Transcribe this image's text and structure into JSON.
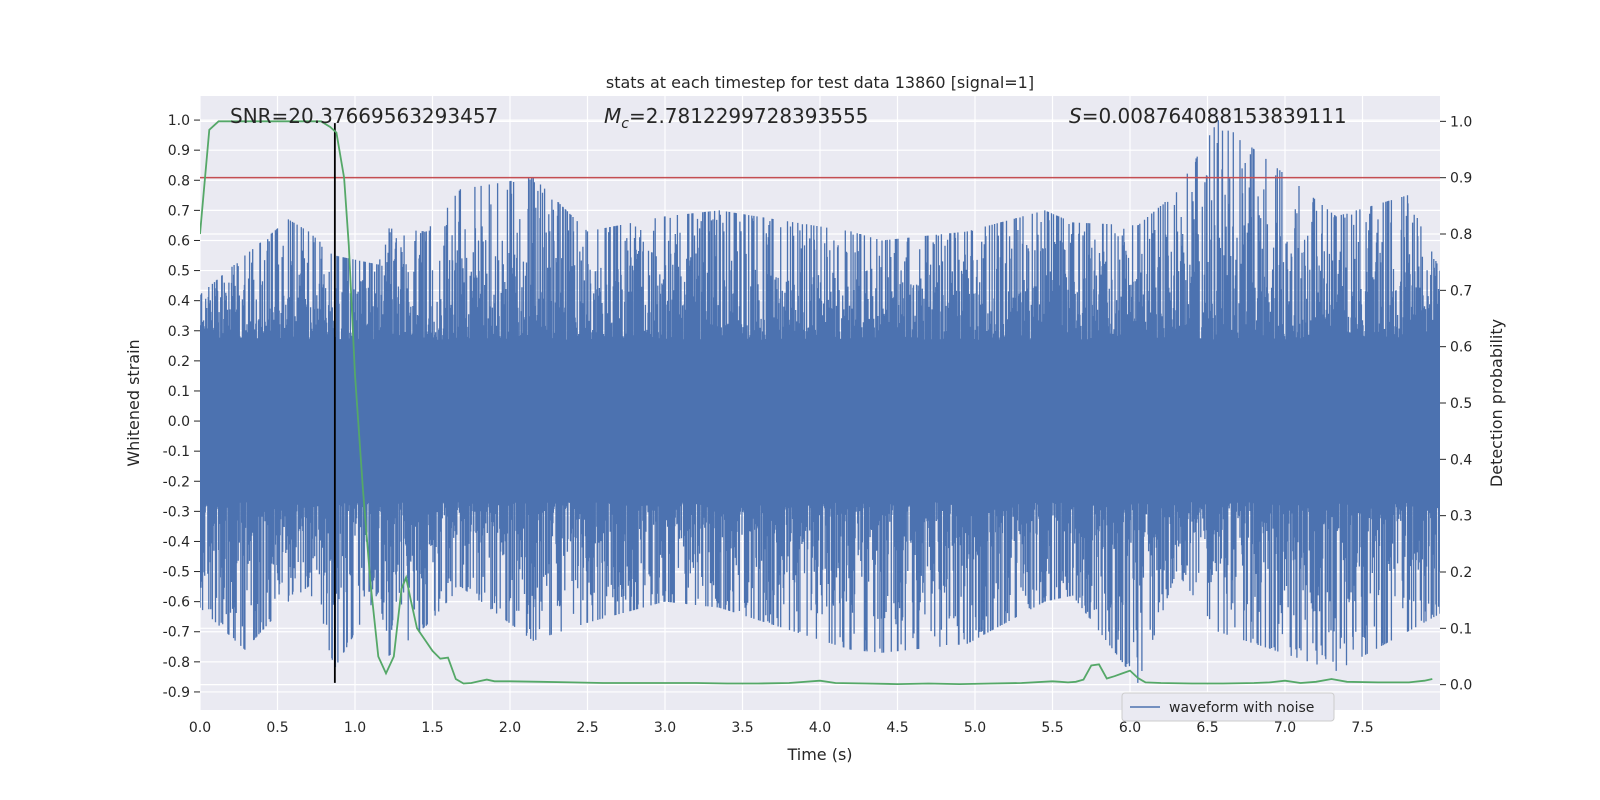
{
  "chart_data": {
    "type": "line",
    "title": "stats at each timestep for test data 13860 [signal=1]",
    "xlabel": "Time (s)",
    "ylabel": "Whitened strain",
    "y2label": "Detection probability",
    "xlim": [
      0.0,
      8.0
    ],
    "ylim": [
      -0.96,
      1.08
    ],
    "y2lim": [
      -0.045,
      1.045
    ],
    "x_ticks": [
      "0.0",
      "0.5",
      "1.0",
      "1.5",
      "2.0",
      "2.5",
      "3.0",
      "3.5",
      "4.0",
      "4.5",
      "5.0",
      "5.5",
      "6.0",
      "6.5",
      "7.0",
      "7.5"
    ],
    "x_tick_values": [
      0,
      0.5,
      1,
      1.5,
      2,
      2.5,
      3,
      3.5,
      4,
      4.5,
      5,
      5.5,
      6,
      6.5,
      7,
      7.5
    ],
    "y_ticks": [
      "1.0",
      "0.9",
      "0.8",
      "0.7",
      "0.6",
      "0.5",
      "0.4",
      "0.3",
      "0.2",
      "0.1",
      "0.0",
      "-0.1",
      "-0.2",
      "-0.3",
      "-0.4",
      "-0.5",
      "-0.6",
      "-0.7",
      "-0.8",
      "-0.9"
    ],
    "y_tick_values": [
      1.0,
      0.9,
      0.8,
      0.7,
      0.6,
      0.5,
      0.4,
      0.3,
      0.2,
      0.1,
      0.0,
      -0.1,
      -0.2,
      -0.3,
      -0.4,
      -0.5,
      -0.6,
      -0.7,
      -0.8,
      -0.9
    ],
    "y2_ticks": [
      "1.0",
      "0.9",
      "0.8",
      "0.7",
      "0.6",
      "0.5",
      "0.4",
      "0.3",
      "0.2",
      "0.1",
      "0.0"
    ],
    "y2_tick_values": [
      1.0,
      0.9,
      0.8,
      0.7,
      0.6,
      0.5,
      0.4,
      0.3,
      0.2,
      0.1,
      0.0
    ],
    "grid": true,
    "legend_position": "bottom-right",
    "annotations": {
      "snr": "SNR=20.37669563293457",
      "mc_symbol": "M",
      "mc_sub": "c",
      "mc_value": "=2.7812299728393555",
      "s_symbol": "S",
      "s_value": "=0.008764088153839111"
    },
    "threshold_y2": 0.9,
    "event_time": 0.87,
    "event_line_y": [
      -0.87,
      0.99
    ],
    "series": [
      {
        "name": "waveform with noise",
        "color": "#4c72b0",
        "envelope_peaks": [
          {
            "x": 0.0,
            "max": 0.42,
            "min": -0.62
          },
          {
            "x": 0.29,
            "max": 0.55,
            "min": -0.76
          },
          {
            "x": 0.57,
            "max": 0.67,
            "min": -0.6
          },
          {
            "x": 0.7,
            "max": 0.63,
            "min": -0.55
          },
          {
            "x": 0.87,
            "max": 0.55,
            "min": -0.82
          },
          {
            "x": 1.15,
            "max": 0.52,
            "min": -0.57
          },
          {
            "x": 1.22,
            "max": 0.64,
            "min": -0.78
          },
          {
            "x": 1.46,
            "max": 0.63,
            "min": -0.68
          },
          {
            "x": 1.68,
            "max": 0.77,
            "min": -0.55
          },
          {
            "x": 2.15,
            "max": 0.81,
            "min": -0.73
          },
          {
            "x": 2.5,
            "max": 0.63,
            "min": -0.67
          },
          {
            "x": 3.0,
            "max": 0.68,
            "min": -0.6
          },
          {
            "x": 3.35,
            "max": 0.7,
            "min": -0.62
          },
          {
            "x": 4.2,
            "max": 0.63,
            "min": -0.76
          },
          {
            "x": 4.4,
            "max": 0.6,
            "min": -0.77
          },
          {
            "x": 4.95,
            "max": 0.63,
            "min": -0.74
          },
          {
            "x": 5.45,
            "max": 0.7,
            "min": -0.6
          },
          {
            "x": 5.63,
            "max": 0.66,
            "min": -0.58
          },
          {
            "x": 6.05,
            "max": 0.65,
            "min": -0.87
          },
          {
            "x": 6.3,
            "max": 0.76,
            "min": -0.5
          },
          {
            "x": 6.57,
            "max": 1.0,
            "min": -0.7
          },
          {
            "x": 7.33,
            "max": 0.68,
            "min": -0.83
          },
          {
            "x": 7.79,
            "max": 0.75,
            "min": -0.7
          },
          {
            "x": 8.0,
            "max": 0.5,
            "min": -0.64
          }
        ]
      },
      {
        "name": "",
        "color": "#55a868",
        "axis": "right",
        "x": [
          0.0,
          0.06,
          0.12,
          0.2,
          0.3,
          0.4,
          0.5,
          0.6,
          0.7,
          0.78,
          0.84,
          0.88,
          0.93,
          0.96,
          1.0,
          1.05,
          1.1,
          1.15,
          1.2,
          1.25,
          1.3,
          1.33,
          1.36,
          1.4,
          1.45,
          1.5,
          1.55,
          1.6,
          1.65,
          1.7,
          1.75,
          1.8,
          1.85,
          1.9,
          2.0,
          2.2,
          2.4,
          2.6,
          2.8,
          3.0,
          3.2,
          3.4,
          3.6,
          3.8,
          4.0,
          4.1,
          4.3,
          4.5,
          4.7,
          4.9,
          5.1,
          5.3,
          5.5,
          5.55,
          5.6,
          5.65,
          5.7,
          5.75,
          5.8,
          5.85,
          5.9,
          5.95,
          6.0,
          6.05,
          6.1,
          6.2,
          6.4,
          6.6,
          6.8,
          6.9,
          7.0,
          7.1,
          7.2,
          7.3,
          7.4,
          7.6,
          7.8,
          7.9,
          7.95
        ],
        "y": [
          0.8,
          0.985,
          1.0,
          1.0,
          1.0,
          1.0,
          1.0,
          1.0,
          1.0,
          1.0,
          0.99,
          0.98,
          0.9,
          0.78,
          0.55,
          0.35,
          0.18,
          0.05,
          0.02,
          0.05,
          0.17,
          0.19,
          0.15,
          0.1,
          0.08,
          0.06,
          0.046,
          0.048,
          0.01,
          0.002,
          0.003,
          0.006,
          0.009,
          0.006,
          0.006,
          0.005,
          0.004,
          0.003,
          0.003,
          0.003,
          0.003,
          0.002,
          0.002,
          0.003,
          0.007,
          0.003,
          0.002,
          0.001,
          0.002,
          0.001,
          0.002,
          0.003,
          0.006,
          0.005,
          0.004,
          0.005,
          0.009,
          0.034,
          0.036,
          0.011,
          0.015,
          0.02,
          0.025,
          0.012,
          0.004,
          0.003,
          0.002,
          0.002,
          0.003,
          0.004,
          0.007,
          0.003,
          0.005,
          0.01,
          0.005,
          0.004,
          0.004,
          0.007,
          0.01
        ]
      },
      {
        "name": "",
        "color": "#c44e52",
        "axis": "right",
        "type": "hline",
        "y": 0.9
      }
    ]
  }
}
